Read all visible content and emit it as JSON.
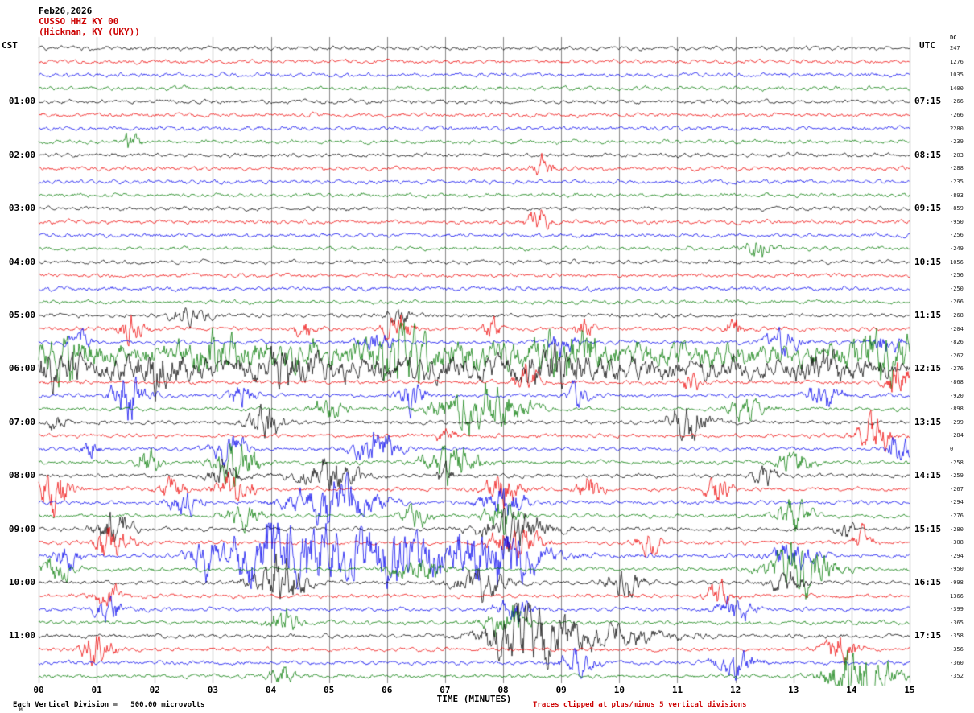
{
  "header": {
    "date": "Feb26,2026",
    "station": "CUSSO HHZ KY 00",
    "location": "(Hickman, KY (UKY))"
  },
  "axes": {
    "left_timezone": "CST",
    "right_timezone": "UTC",
    "dc_label": "DC",
    "left_labels": [
      "01:00",
      "02:00",
      "03:00",
      "04:00",
      "05:00",
      "06:00",
      "07:00",
      "08:00",
      "09:00",
      "10:00",
      "11:00"
    ],
    "right_labels": [
      "07:15",
      "08:15",
      "09:15",
      "10:15",
      "11:15",
      "12:15",
      "13:15",
      "14:15",
      "15:15",
      "16:15",
      "17:15"
    ],
    "x_ticks": [
      "00",
      "01",
      "02",
      "03",
      "04",
      "05",
      "06",
      "07",
      "08",
      "09",
      "10",
      "11",
      "12",
      "13",
      "14",
      "15"
    ],
    "x_title": "TIME (MINUTES)"
  },
  "footer": {
    "left": "Each Vertical Division =   500.00 microvolts",
    "right": "Traces clipped at plus/minus 5 vertical divisions",
    "corner_mark": "M"
  },
  "dc_offsets": [
    "247",
    "1276",
    "1035",
    "1400",
    "-266",
    "-266",
    "2280",
    "-239",
    "-203",
    "-288",
    "-235",
    "-893",
    "-859",
    "-950",
    "-256",
    "-249",
    "1056",
    "-256",
    "-250",
    "-266",
    "-268",
    "-204",
    "-826",
    "-262",
    "-276",
    "-868",
    "-920",
    "-898",
    "-299",
    "-284",
    "0",
    "-258",
    "-259",
    "-267",
    "-294",
    "-276",
    "-280",
    "-308",
    "-294",
    "-950",
    "-998",
    "1366",
    "-399",
    "-365",
    "-358",
    "-356",
    "-360",
    "-352"
  ],
  "chart_data": {
    "type": "line",
    "subtype": "helicorder-seismogram",
    "title": "CUSSO HHZ KY 00 (Hickman, KY (UKY)) Feb26,2026",
    "xlabel": "TIME (MINUTES)",
    "x_range_minutes": [
      0,
      15
    ],
    "rows": 48,
    "minutes_per_row": 15,
    "first_row_start_cst": "00:00",
    "last_row_start_cst": "11:45",
    "utc_offset_hours": 6,
    "vertical_division_microvolts": 500.0,
    "clip_divisions": 5,
    "trace_colors": [
      "#000000",
      "#ee0000",
      "#0000ee",
      "#007a00"
    ],
    "grid": "vertical lines every 1 minute",
    "legend_position": "none",
    "events_note": "Approximate visible seismic bursts: [row_index_from_top, minute, sigma_minutes, amplitude_divisions]",
    "events": [
      [
        7,
        1.6,
        0.08,
        3.5
      ],
      [
        9,
        8.7,
        0.1,
        3
      ],
      [
        13,
        8.6,
        0.12,
        3.5
      ],
      [
        15,
        12.4,
        0.15,
        3
      ],
      [
        20,
        2.6,
        0.2,
        2.5
      ],
      [
        20,
        6.2,
        0.15,
        2
      ],
      [
        21,
        1.6,
        0.15,
        4
      ],
      [
        21,
        4.6,
        0.12,
        3
      ],
      [
        21,
        6.2,
        0.15,
        4.5
      ],
      [
        21,
        7.8,
        0.1,
        3
      ],
      [
        21,
        9.4,
        0.1,
        3
      ],
      [
        21,
        12,
        0.1,
        2.5
      ],
      [
        22,
        0.7,
        0.12,
        3.5
      ],
      [
        22,
        5.8,
        0.2,
        3
      ],
      [
        22,
        9,
        0.15,
        3
      ],
      [
        22,
        12.8,
        0.2,
        3.5
      ],
      [
        22,
        14.6,
        0.15,
        3
      ],
      [
        23,
        7.5,
        7,
        3
      ],
      [
        23,
        0.5,
        0.3,
        4
      ],
      [
        23,
        3,
        0.3,
        4
      ],
      [
        23,
        6.3,
        0.3,
        5
      ],
      [
        23,
        9,
        0.4,
        4
      ],
      [
        23,
        14.5,
        0.4,
        5
      ],
      [
        24,
        7.5,
        7,
        2.5
      ],
      [
        24,
        0.3,
        0.3,
        4
      ],
      [
        24,
        2,
        0.3,
        4
      ],
      [
        24,
        4.3,
        0.3,
        3.5
      ],
      [
        24,
        8.8,
        0.3,
        3.5
      ],
      [
        24,
        13.5,
        0.3,
        3
      ],
      [
        25,
        8.4,
        0.15,
        3.5
      ],
      [
        25,
        11.2,
        0.12,
        3
      ],
      [
        25,
        14.8,
        0.15,
        4.5
      ],
      [
        26,
        1.55,
        0.2,
        6
      ],
      [
        26,
        3.5,
        0.15,
        3.5
      ],
      [
        26,
        6.4,
        0.15,
        4
      ],
      [
        26,
        9.3,
        0.12,
        3.5
      ],
      [
        26,
        13.5,
        0.2,
        3.5
      ],
      [
        27,
        7.6,
        0.5,
        6
      ],
      [
        27,
        5,
        0.2,
        3
      ],
      [
        27,
        12.2,
        0.2,
        3
      ],
      [
        28,
        3.9,
        0.2,
        4
      ],
      [
        28,
        11.2,
        0.25,
        4.5
      ],
      [
        28,
        0.3,
        0.1,
        2.5
      ],
      [
        29,
        14.4,
        0.2,
        5
      ],
      [
        29,
        7,
        0.1,
        2.5
      ],
      [
        30,
        3.3,
        0.2,
        4
      ],
      [
        30,
        5.8,
        0.25,
        5
      ],
      [
        30,
        0.9,
        0.1,
        3
      ],
      [
        30,
        14.8,
        0.15,
        4
      ],
      [
        31,
        3.4,
        0.25,
        6
      ],
      [
        31,
        7.1,
        0.3,
        5
      ],
      [
        31,
        1.9,
        0.15,
        3
      ],
      [
        31,
        13,
        0.2,
        3
      ],
      [
        32,
        3.2,
        0.2,
        3
      ],
      [
        32,
        5,
        0.35,
        4
      ],
      [
        32,
        12.5,
        0.15,
        2.5
      ],
      [
        32,
        7,
        0.1,
        2.5
      ],
      [
        33,
        0.25,
        0.2,
        6
      ],
      [
        33,
        2.3,
        0.15,
        3
      ],
      [
        33,
        3.4,
        0.2,
        5
      ],
      [
        33,
        8,
        0.2,
        4
      ],
      [
        33,
        9.5,
        0.15,
        3
      ],
      [
        33,
        11.7,
        0.15,
        3.5
      ],
      [
        34,
        5.1,
        0.5,
        6
      ],
      [
        34,
        8,
        0.25,
        4
      ],
      [
        34,
        2.5,
        0.2,
        3
      ],
      [
        35,
        3.5,
        0.2,
        3
      ],
      [
        35,
        6.5,
        0.15,
        3
      ],
      [
        35,
        8,
        0.2,
        4
      ],
      [
        35,
        13,
        0.2,
        4
      ],
      [
        36,
        1.3,
        0.2,
        4.5
      ],
      [
        36,
        8.2,
        0.4,
        5
      ],
      [
        36,
        13.9,
        0.1,
        2.5
      ],
      [
        37,
        1.3,
        0.2,
        5
      ],
      [
        37,
        8.2,
        0.3,
        4
      ],
      [
        37,
        10.5,
        0.15,
        3
      ],
      [
        37,
        14.2,
        0.1,
        3
      ],
      [
        38,
        6,
        1.4,
        7
      ],
      [
        38,
        4.1,
        0.5,
        7
      ],
      [
        38,
        0.5,
        0.15,
        3.5
      ],
      [
        38,
        2.9,
        0.2,
        4
      ],
      [
        38,
        8,
        0.4,
        5
      ],
      [
        38,
        13,
        0.3,
        3
      ],
      [
        39,
        13.1,
        0.4,
        6
      ],
      [
        39,
        6.5,
        0.3,
        3
      ],
      [
        39,
        0.3,
        0.2,
        3
      ],
      [
        40,
        4.15,
        0.3,
        6
      ],
      [
        40,
        7.6,
        0.3,
        4
      ],
      [
        40,
        10.1,
        0.2,
        3.5
      ],
      [
        40,
        12.9,
        0.2,
        3
      ],
      [
        41,
        1.2,
        0.15,
        3
      ],
      [
        41,
        11.7,
        0.15,
        3
      ],
      [
        42,
        1.2,
        0.15,
        4
      ],
      [
        42,
        8.2,
        0.2,
        3
      ],
      [
        42,
        12,
        0.2,
        3
      ],
      [
        43,
        4.2,
        0.2,
        3
      ],
      [
        43,
        8.1,
        0.25,
        4
      ],
      [
        44,
        8.35,
        0.45,
        7
      ],
      [
        44,
        9.5,
        0.8,
        3
      ],
      [
        45,
        1,
        0.2,
        4
      ],
      [
        45,
        13.8,
        0.2,
        4
      ],
      [
        46,
        9.3,
        0.2,
        3
      ],
      [
        46,
        12,
        0.25,
        3
      ],
      [
        47,
        14.15,
        0.35,
        8
      ],
      [
        47,
        4.2,
        0.15,
        3
      ]
    ]
  }
}
